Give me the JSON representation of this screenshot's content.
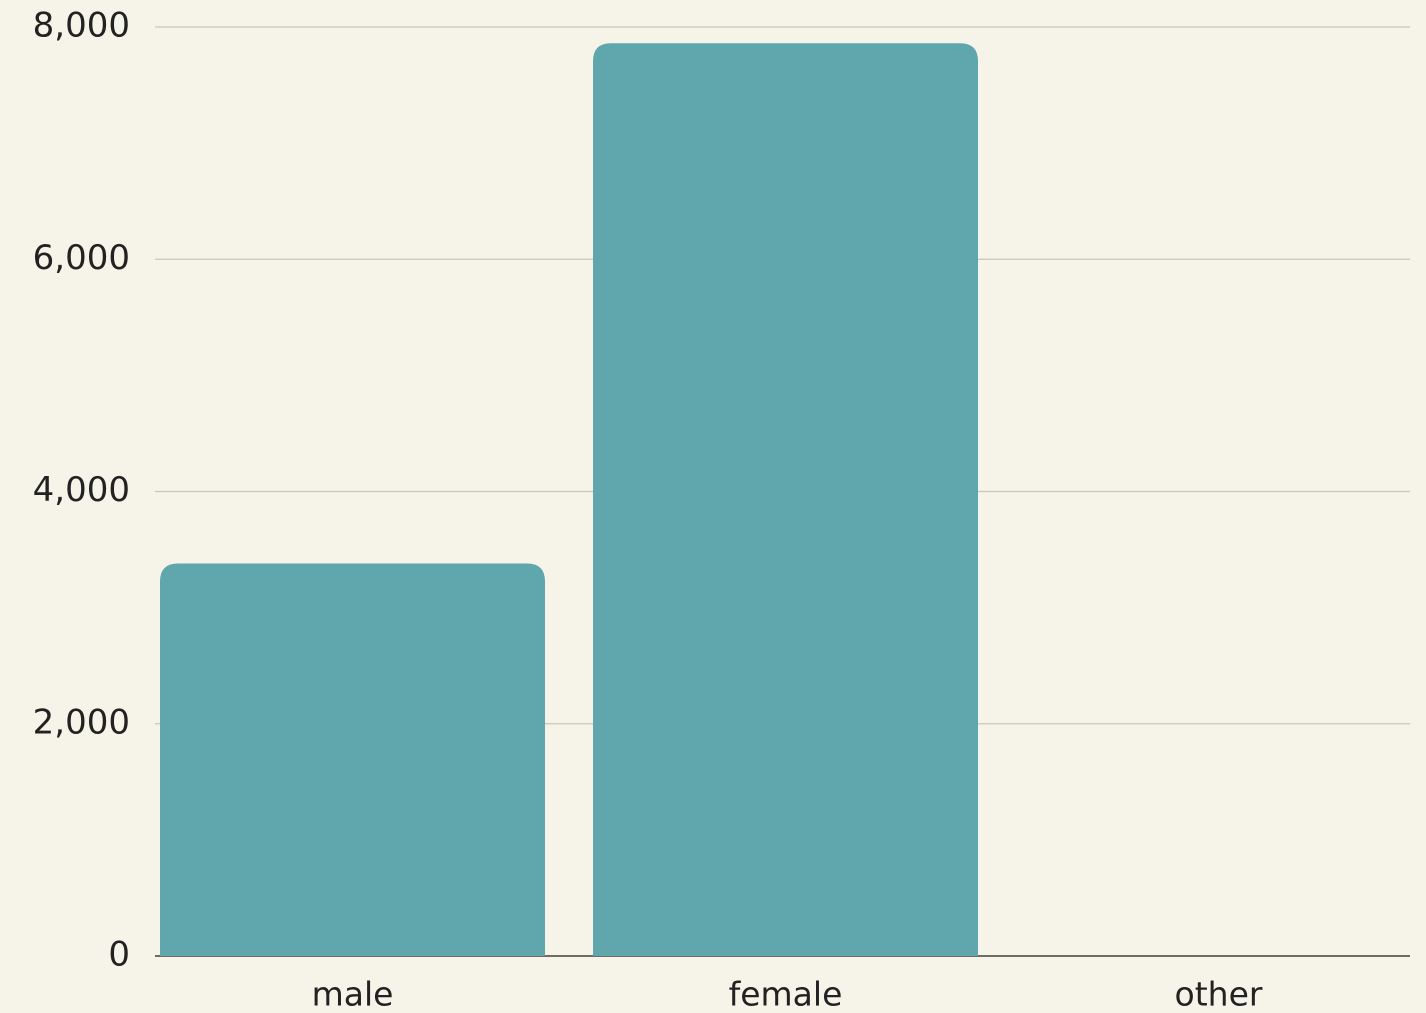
{
  "chart_data": {
    "type": "bar",
    "categories": [
      "male",
      "female",
      "other"
    ],
    "values": [
      3380,
      7860,
      0
    ],
    "color": "#5fa6ad",
    "ylim": [
      0,
      8000
    ],
    "yticks": [
      0,
      {
        "value": 2000,
        "label": "2,000"
      },
      {
        "value": 4000,
        "label": "4,000"
      },
      {
        "value": 6000,
        "label": "6,000"
      },
      {
        "value": 8000,
        "label": "8,000"
      }
    ],
    "grid": true
  }
}
